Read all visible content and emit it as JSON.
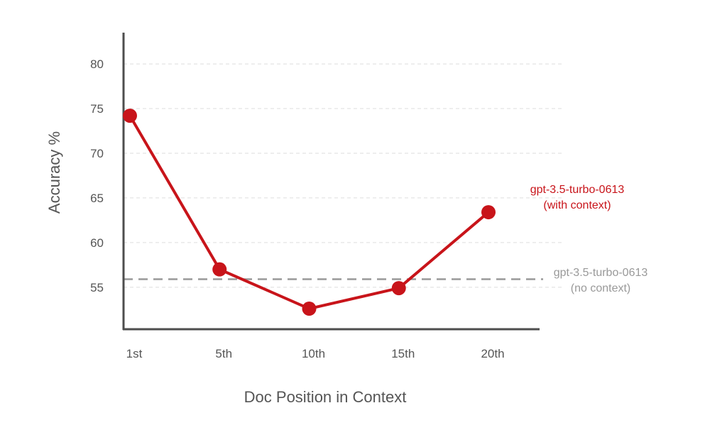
{
  "colors": {
    "series": "#c8141a",
    "baseline": "#999999",
    "axis": "#4d4d4d",
    "grid": "#dddddd",
    "text": "#555555"
  },
  "chart_data": {
    "type": "line",
    "title": "",
    "xlabel": "Doc Position in Context",
    "ylabel": "Accuracy %",
    "categories": [
      "1st",
      "5th",
      "10th",
      "15th",
      "20th"
    ],
    "yticks": [
      55,
      60,
      65,
      70,
      75,
      80
    ],
    "ylim": [
      50.3,
      83.5
    ],
    "grid": true,
    "series": [
      {
        "name_lines": [
          "gpt-3.5-turbo-0613",
          "(with context)"
        ],
        "values": [
          74.2,
          57.0,
          52.6,
          54.9,
          63.4
        ]
      }
    ],
    "reference_lines": [
      {
        "name_lines": [
          "gpt-3.5-turbo-0613",
          "(no context)"
        ],
        "value": 55.9,
        "style": "dashed"
      }
    ]
  }
}
